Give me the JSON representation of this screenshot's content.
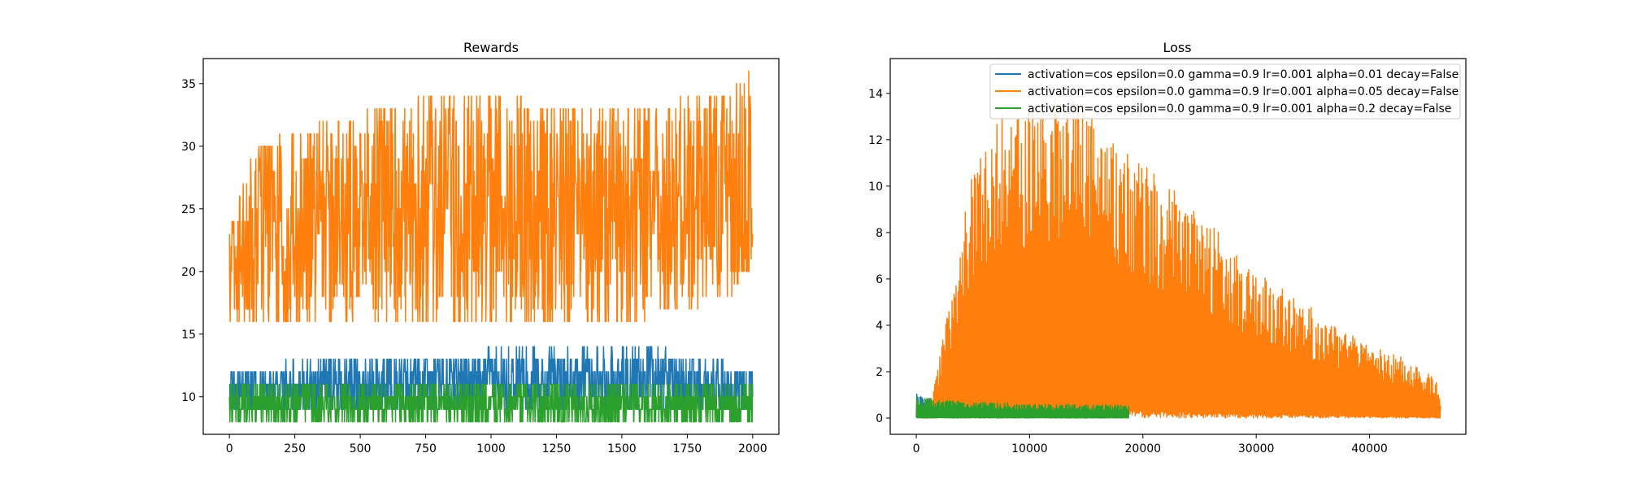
{
  "chart_data": [
    {
      "type": "line",
      "title": "Rewards",
      "xlabel": "",
      "ylabel": "",
      "xlim": [
        -100,
        2100
      ],
      "ylim": [
        7,
        37
      ],
      "xticks": [
        0,
        250,
        500,
        750,
        1000,
        1250,
        1500,
        1750,
        2000
      ],
      "xtick_labels": [
        "0",
        "250",
        "500",
        "750",
        "1000",
        "1250",
        "1500",
        "1750",
        "2000"
      ],
      "yticks": [
        10,
        15,
        20,
        25,
        30,
        35
      ],
      "ytick_labels": [
        "10",
        "15",
        "20",
        "25",
        "30",
        "35"
      ],
      "grid": false,
      "series": [
        {
          "color": "#1f77b4",
          "x_range": [
            0,
            2000
          ],
          "band": [
            {
              "x": 0,
              "lo": 9,
              "hi": 12
            },
            {
              "x": 375,
              "lo": 9,
              "hi": 13
            },
            {
              "x": 1600,
              "lo": 9,
              "hi": 14
            },
            {
              "x": 2000,
              "lo": 9,
              "hi": 12
            }
          ]
        },
        {
          "color": "#ff7f0e",
          "x_range": [
            0,
            2000
          ],
          "band": [
            {
              "x": 0,
              "lo": 16,
              "hi": 23
            },
            {
              "x": 100,
              "lo": 16,
              "hi": 30
            },
            {
              "x": 750,
              "lo": 16,
              "hi": 34
            },
            {
              "x": 1500,
              "lo": 16,
              "hi": 33
            },
            {
              "x": 1900,
              "lo": 18,
              "hi": 34
            },
            {
              "x": 1990,
              "lo": 20,
              "hi": 36
            },
            {
              "x": 2000,
              "lo": 22,
              "hi": 27
            }
          ]
        },
        {
          "color": "#2ca02c",
          "x_range": [
            0,
            2000
          ],
          "band": [
            {
              "x": 0,
              "lo": 8,
              "hi": 11
            },
            {
              "x": 2000,
              "lo": 8,
              "hi": 11
            }
          ]
        }
      ]
    },
    {
      "type": "line",
      "title": "Loss",
      "xlabel": "",
      "ylabel": "",
      "xlim": [
        -2300,
        48500
      ],
      "ylim": [
        -0.7,
        15.5
      ],
      "xticks": [
        0,
        10000,
        20000,
        30000,
        40000
      ],
      "xtick_labels": [
        "0",
        "10000",
        "20000",
        "30000",
        "40000"
      ],
      "yticks": [
        0,
        2,
        4,
        6,
        8,
        10,
        12,
        14
      ],
      "ytick_labels": [
        "0",
        "2",
        "4",
        "6",
        "8",
        "10",
        "12",
        "14"
      ],
      "grid": false,
      "legend_position": "top-right",
      "series": [
        {
          "name": "activation=cos epsilon=0.0 gamma=0.9 lr=0.001 alpha=0.01 decay=False",
          "color": "#1f77b4",
          "x_range": [
            0,
            1300
          ],
          "envelope": [
            {
              "x": 0,
              "y": 1.0
            },
            {
              "x": 1300,
              "y": 0.9
            }
          ]
        },
        {
          "name": "activation=cos epsilon=0.0 gamma=0.9 lr=0.001 alpha=0.05 decay=False",
          "color": "#ff7f0e",
          "x_range": [
            500,
            46300
          ],
          "envelope": [
            {
              "x": 500,
              "y": 0.2
            },
            {
              "x": 1500,
              "y": 1.2
            },
            {
              "x": 3000,
              "y": 5.0
            },
            {
              "x": 5000,
              "y": 10.5
            },
            {
              "x": 7000,
              "y": 12.5
            },
            {
              "x": 10000,
              "y": 13.0
            },
            {
              "x": 13000,
              "y": 13.5
            },
            {
              "x": 15000,
              "y": 13.5
            },
            {
              "x": 17000,
              "y": 12.0
            },
            {
              "x": 20000,
              "y": 10.6
            },
            {
              "x": 25000,
              "y": 8.5
            },
            {
              "x": 30000,
              "y": 6.0
            },
            {
              "x": 35000,
              "y": 4.5
            },
            {
              "x": 40000,
              "y": 3.0
            },
            {
              "x": 44000,
              "y": 2.3
            },
            {
              "x": 46000,
              "y": 1.5
            },
            {
              "x": 46300,
              "y": 0.5
            }
          ]
        },
        {
          "name": "activation=cos epsilon=0.0 gamma=0.9 lr=0.001 alpha=0.2 decay=False",
          "color": "#2ca02c",
          "x_range": [
            0,
            18800
          ],
          "envelope": [
            {
              "x": 0,
              "y": 0.9
            },
            {
              "x": 2000,
              "y": 0.75
            },
            {
              "x": 10000,
              "y": 0.6
            },
            {
              "x": 18800,
              "y": 0.55
            }
          ]
        }
      ]
    }
  ]
}
